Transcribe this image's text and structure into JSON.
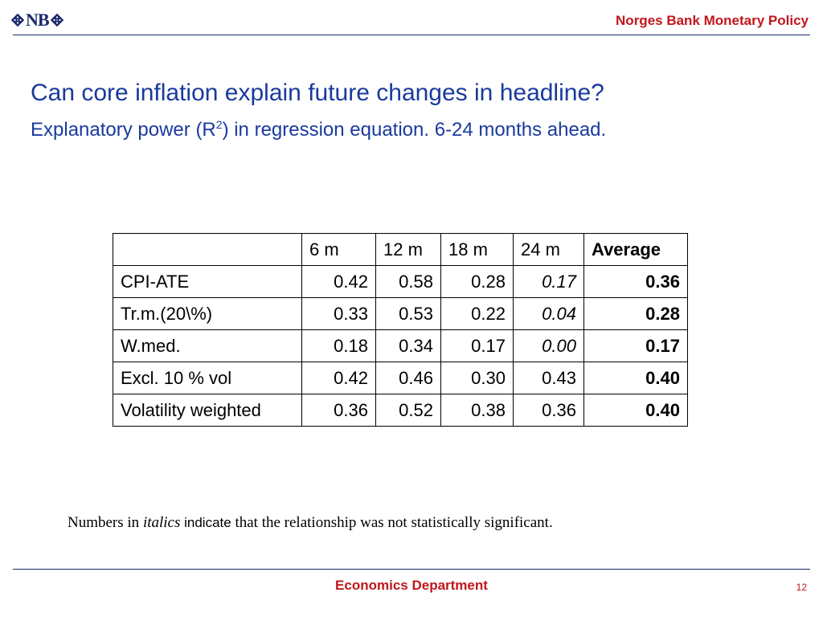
{
  "header": {
    "logo_text": "NB",
    "title": "Norges Bank Monetary Policy"
  },
  "slide": {
    "title": "Can core inflation explain future changes in headline?",
    "subtitle_pre": "Explanatory power (R",
    "subtitle_sup": "2",
    "subtitle_post": ") in regression equation. 6-24 months ahead."
  },
  "table": {
    "headers": [
      "",
      "6 m",
      "12 m",
      "18 m",
      "24 m",
      "Average"
    ],
    "rows": [
      {
        "label": "CPI-ATE",
        "values": [
          "0.42",
          "0.58",
          "0.28",
          "0.17",
          "0.36"
        ],
        "italic_24m": true
      },
      {
        "label": "Tr.m.(20\\%)",
        "values": [
          "0.33",
          "0.53",
          "0.22",
          "0.04",
          "0.28"
        ],
        "italic_24m": true
      },
      {
        "label": "W.med.",
        "values": [
          "0.18",
          "0.34",
          "0.17",
          "0.00",
          "0.17"
        ],
        "italic_24m": true
      },
      {
        "label": "Excl. 10 % vol",
        "values": [
          "0.42",
          "0.46",
          "0.30",
          "0.43",
          "0.40"
        ],
        "italic_24m": false
      },
      {
        "label": "Volatility weighted",
        "values": [
          "0.36",
          "0.52",
          "0.38",
          "0.36",
          "0.40"
        ],
        "italic_24m": false
      }
    ]
  },
  "footnote": {
    "part1": "Numbers in ",
    "part2": "italics",
    "part3": " indicate",
    "part4": " that the relationship was not statistically significant."
  },
  "footer": {
    "department": "Economics Department",
    "page_number": "12"
  },
  "colors": {
    "accent_red": "#c0161c",
    "title_blue": "#1a3a9e",
    "navy": "#1a2a6c"
  }
}
